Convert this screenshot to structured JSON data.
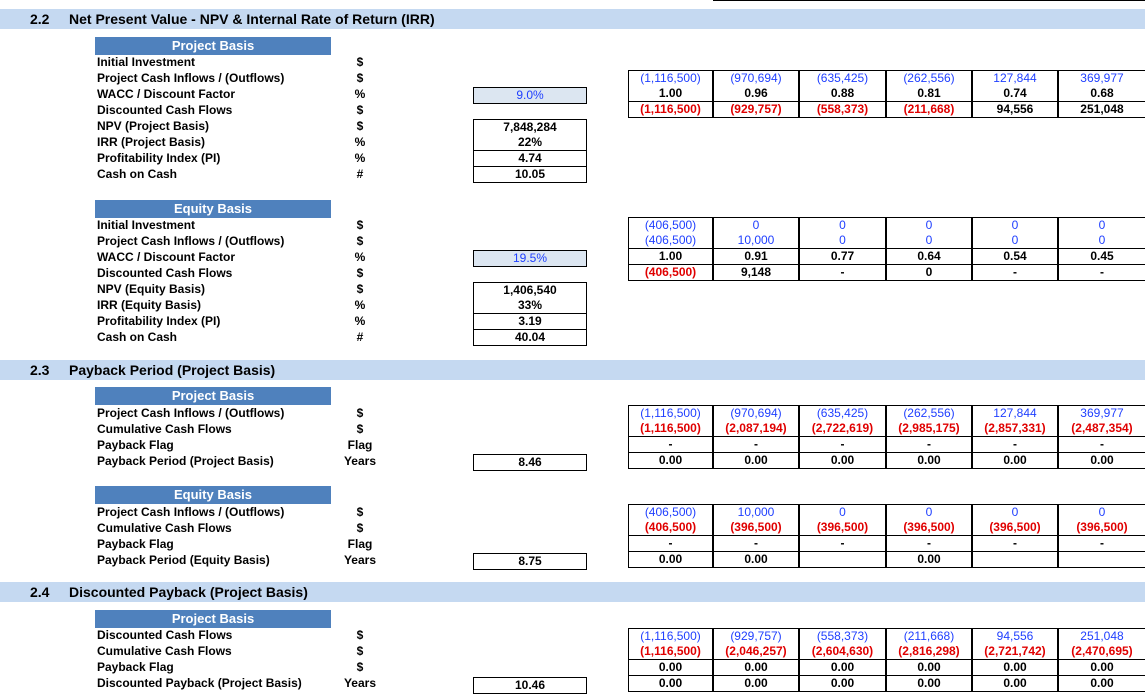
{
  "sections": {
    "s22": {
      "num": "2.2",
      "title": "Net Present Value - NPV & Internal Rate of Return (IRR)"
    },
    "s23": {
      "num": "2.3",
      "title": "Payback Period (Project Basis)"
    },
    "s24": {
      "num": "2.4",
      "title": "Discounted Payback (Project Basis)"
    }
  },
  "npv_project": {
    "header": "Project Basis",
    "labels": [
      "Initial Investment",
      "Project Cash Inflows / (Outflows)",
      "WACC / Discount Factor",
      "Discounted Cash Flows",
      "NPV (Project Basis)",
      "IRR (Project Basis)",
      "Profitability Index (PI)",
      "Cash on Cash"
    ],
    "units": [
      "$",
      "$",
      "%",
      "$",
      "$",
      "%",
      "%",
      "#"
    ],
    "wacc": "9.0%",
    "npv": "7,848,284",
    "irr": "22%",
    "pi": "4.74",
    "coc": "10.05",
    "cash_flows": [
      "(1,116,500)",
      "(970,694)",
      "(635,425)",
      "(262,556)",
      "127,844",
      "369,977"
    ],
    "discount_factors": [
      "1.00",
      "0.96",
      "0.88",
      "0.81",
      "0.74",
      "0.68"
    ],
    "discounted": [
      "(1,116,500)",
      "(929,757)",
      "(558,373)",
      "(211,668)",
      "94,556",
      "251,048"
    ]
  },
  "npv_equity": {
    "header": "Equity Basis",
    "labels": [
      "Initial Investment",
      "Project Cash Inflows / (Outflows)",
      "WACC / Discount Factor",
      "Discounted Cash Flows",
      "NPV (Equity Basis)",
      "IRR (Equity Basis)",
      "Profitability Index (PI)",
      "Cash on Cash"
    ],
    "units": [
      "$",
      "$",
      "%",
      "$",
      "$",
      "%",
      "%",
      "#"
    ],
    "wacc": "19.5%",
    "npv": "1,406,540",
    "irr": "33%",
    "pi": "3.19",
    "coc": "40.04",
    "initial": [
      "(406,500)",
      "0",
      "0",
      "0",
      "0",
      "0"
    ],
    "cash_flows": [
      "(406,500)",
      "10,000",
      "0",
      "0",
      "0",
      "0"
    ],
    "discount_factors": [
      "1.00",
      "0.91",
      "0.77",
      "0.64",
      "0.54",
      "0.45"
    ],
    "discounted": [
      "(406,500)",
      "9,148",
      "-",
      "0",
      "-",
      "-"
    ]
  },
  "payback_project": {
    "header": "Project Basis",
    "labels": [
      "Project Cash Inflows / (Outflows)",
      "Cumulative Cash Flows",
      "Payback Flag",
      "Payback Period (Project Basis)"
    ],
    "units": [
      "$",
      "$",
      "Flag",
      "Years"
    ],
    "value": "8.46",
    "cash_flows": [
      "(1,116,500)",
      "(970,694)",
      "(635,425)",
      "(262,556)",
      "127,844",
      "369,977"
    ],
    "cumulative": [
      "(1,116,500)",
      "(2,087,194)",
      "(2,722,619)",
      "(2,985,175)",
      "(2,857,331)",
      "(2,487,354)"
    ],
    "flags": [
      "-",
      "-",
      "-",
      "-",
      "-",
      "-"
    ],
    "periods": [
      "0.00",
      "0.00",
      "0.00",
      "0.00",
      "0.00",
      "0.00"
    ]
  },
  "payback_equity": {
    "header": "Equity Basis",
    "labels": [
      "Project Cash Inflows / (Outflows)",
      "Cumulative Cash Flows",
      "Payback Flag",
      "Payback Period (Equity Basis)"
    ],
    "units": [
      "$",
      "$",
      "Flag",
      "Years"
    ],
    "value": "8.75",
    "cash_flows": [
      "(406,500)",
      "10,000",
      "0",
      "0",
      "0",
      "0"
    ],
    "cumulative": [
      "(406,500)",
      "(396,500)",
      "(396,500)",
      "(396,500)",
      "(396,500)",
      "(396,500)"
    ],
    "flags": [
      "-",
      "-",
      "-",
      "-",
      "-",
      "-"
    ],
    "periods": [
      "0.00",
      "0.00",
      "",
      "0.00",
      "",
      ""
    ]
  },
  "disc_payback": {
    "header": "Project Basis",
    "labels": [
      "Discounted Cash Flows",
      "Cumulative Cash Flows",
      "Payback Flag",
      "Discounted Payback (Project Basis)"
    ],
    "units": [
      "$",
      "$",
      "$",
      "Years"
    ],
    "value": "10.46",
    "discounted": [
      "(1,116,500)",
      "(929,757)",
      "(558,373)",
      "(211,668)",
      "94,556",
      "251,048"
    ],
    "cumulative": [
      "(1,116,500)",
      "(2,046,257)",
      "(2,604,630)",
      "(2,816,298)",
      "(2,721,742)",
      "(2,470,695)"
    ],
    "flags": [
      "0.00",
      "0.00",
      "0.00",
      "0.00",
      "0.00",
      "0.00"
    ],
    "periods": [
      "0.00",
      "0.00",
      "0.00",
      "0.00",
      "0.00",
      "0.00"
    ]
  }
}
